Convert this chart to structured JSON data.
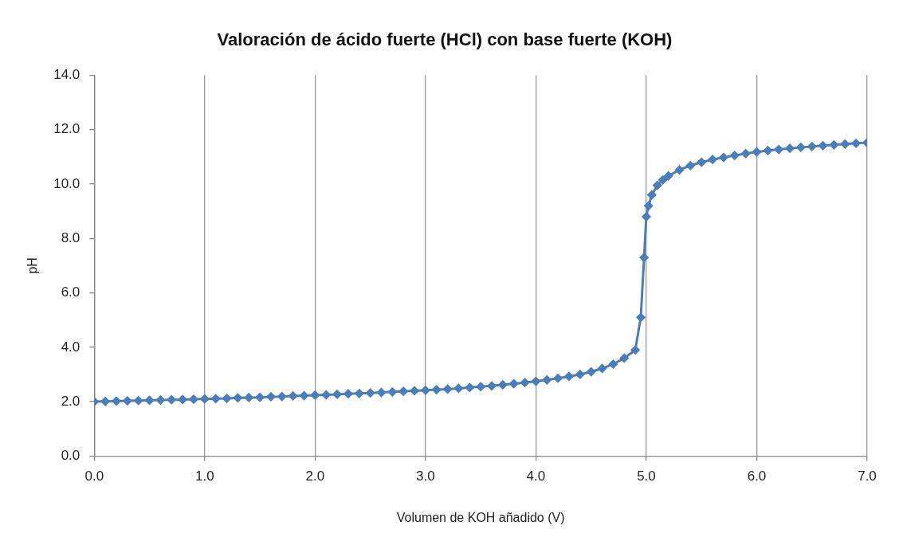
{
  "chart_data": {
    "type": "line",
    "title": "Valoración de ácido fuerte (HCl) con base fuerte (KOH)",
    "xlabel": "Volumen de KOH añadido (V)",
    "ylabel": "pH",
    "series": [
      {
        "color": "#4a7ebb",
        "x": [
          0,
          0.1,
          0.2,
          0.3,
          0.4,
          0.5,
          0.6,
          0.7,
          0.8,
          0.9,
          1,
          1.1,
          1.2,
          1.3,
          1.4,
          1.5,
          1.6,
          1.7,
          1.8,
          1.9,
          2,
          2.1,
          2.2,
          2.3,
          2.4,
          2.5,
          2.6,
          2.7,
          2.8,
          2.9,
          3,
          3.1,
          3.2,
          3.3,
          3.4,
          3.5,
          3.6,
          3.7,
          3.8,
          3.9,
          4,
          4.1,
          4.2,
          4.3,
          4.4,
          4.5,
          4.6,
          4.7,
          4.8,
          4.9,
          4.95,
          4.98,
          5,
          5.02,
          5.05,
          5.1,
          5.15,
          5.2,
          5.3,
          5.4,
          5.5,
          5.6,
          5.7,
          5.8,
          5.9,
          6,
          6.1,
          6.2,
          6.3,
          6.4,
          6.5,
          6.6,
          6.7,
          6.8,
          6.9,
          7
        ],
        "values": [
          2.0,
          2.01,
          2.02,
          2.03,
          2.04,
          2.05,
          2.06,
          2.07,
          2.08,
          2.09,
          2.1,
          2.11,
          2.12,
          2.14,
          2.15,
          2.16,
          2.18,
          2.19,
          2.21,
          2.22,
          2.24,
          2.25,
          2.27,
          2.29,
          2.3,
          2.32,
          2.34,
          2.36,
          2.38,
          2.4,
          2.42,
          2.44,
          2.46,
          2.49,
          2.52,
          2.55,
          2.58,
          2.62,
          2.66,
          2.7,
          2.75,
          2.8,
          2.86,
          2.93,
          3.0,
          3.1,
          3.22,
          3.38,
          3.6,
          3.9,
          5.1,
          7.3,
          8.8,
          9.2,
          9.6,
          9.95,
          10.15,
          10.3,
          10.52,
          10.68,
          10.8,
          10.9,
          10.98,
          11.05,
          11.12,
          11.18,
          11.23,
          11.27,
          11.31,
          11.35,
          11.38,
          11.41,
          11.44,
          11.47,
          11.5,
          11.52
        ]
      }
    ],
    "xlim": [
      0,
      7
    ],
    "xticks": [
      {
        "value": 0,
        "label": "0.0"
      },
      {
        "value": 1,
        "label": "1.0"
      },
      {
        "value": 2,
        "label": "2.0"
      },
      {
        "value": 3,
        "label": "3.0"
      },
      {
        "value": 4,
        "label": "4.0"
      },
      {
        "value": 5,
        "label": "5.0"
      },
      {
        "value": 6,
        "label": "6.0"
      },
      {
        "value": 7,
        "label": "7.0"
      }
    ],
    "ylim": [
      0,
      14
    ],
    "yticks": [
      {
        "value": 0,
        "label": "0.0"
      },
      {
        "value": 2,
        "label": "2.0"
      },
      {
        "value": 4,
        "label": "4.0"
      },
      {
        "value": 6,
        "label": "6.0"
      },
      {
        "value": 8,
        "label": "8.0"
      },
      {
        "value": 10,
        "label": "10.0"
      },
      {
        "value": 12,
        "label": "12.0"
      },
      {
        "value": 14,
        "label": "14.0"
      }
    ],
    "grid": "x",
    "marker": "diamond",
    "line_style": "solid",
    "legend": false
  }
}
